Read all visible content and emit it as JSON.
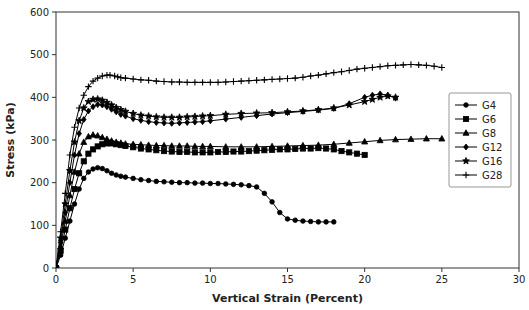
{
  "chart_data": {
    "type": "line",
    "xlabel": "Vertical Strain (Percent)",
    "ylabel": "Stress (kPa)",
    "xlim": [
      0,
      30
    ],
    "ylim": [
      0,
      600
    ],
    "xticks": [
      0,
      5,
      10,
      15,
      20,
      25,
      30
    ],
    "yticks": [
      0,
      100,
      200,
      300,
      400,
      500,
      600
    ],
    "grid": false,
    "legend": "right",
    "series": [
      {
        "name": "G4",
        "color": "black",
        "marker": "circle",
        "line_style": "solid",
        "x": [
          0,
          0.3,
          0.6,
          0.9,
          1.2,
          1.5,
          1.8,
          2.1,
          2.4,
          2.7,
          3.0,
          3.3,
          3.6,
          3.9,
          4.2,
          4.5,
          5.0,
          5.5,
          6.0,
          6.5,
          7.0,
          7.5,
          8.0,
          8.5,
          9.0,
          9.5,
          10.0,
          10.5,
          11.0,
          11.5,
          12.0,
          12.5,
          13.0,
          13.5,
          14.0,
          14.5,
          15.0,
          15.5,
          16.0,
          16.5,
          17.0,
          17.5,
          18.0
        ],
        "values": [
          0,
          30,
          70,
          110,
          150,
          185,
          210,
          225,
          232,
          235,
          233,
          228,
          222,
          218,
          215,
          213,
          210,
          207,
          205,
          203,
          202,
          201,
          200,
          200,
          199,
          199,
          198,
          198,
          197,
          196,
          195,
          193,
          190,
          175,
          155,
          130,
          115,
          112,
          110,
          109,
          108,
          108,
          108
        ]
      },
      {
        "name": "G6",
        "color": "black",
        "marker": "square",
        "line_style": "solid",
        "x": [
          0,
          0.3,
          0.6,
          0.9,
          1.2,
          1.5,
          1.8,
          2.1,
          2.4,
          2.7,
          3.0,
          3.3,
          3.6,
          3.9,
          4.2,
          4.5,
          5.0,
          5.5,
          6.0,
          6.5,
          7.0,
          7.5,
          8.0,
          8.5,
          9.0,
          9.5,
          10.0,
          10.5,
          11.0,
          11.5,
          12.0,
          12.5,
          13.0,
          13.5,
          14.0,
          14.5,
          15.0,
          15.5,
          16.0,
          16.5,
          17.0,
          17.5,
          18.0,
          18.5,
          19.0,
          19.5,
          20.0
        ],
        "values": [
          0,
          40,
          90,
          140,
          185,
          222,
          250,
          268,
          278,
          285,
          290,
          292,
          292,
          290,
          288,
          286,
          283,
          280,
          278,
          276,
          274,
          273,
          272,
          272,
          271,
          271,
          271,
          272,
          272,
          273,
          273,
          274,
          275,
          276,
          277,
          278,
          278,
          279,
          280,
          280,
          281,
          280,
          278,
          274,
          271,
          268,
          265
        ]
      },
      {
        "name": "G8",
        "color": "black",
        "marker": "triangle",
        "line_style": "solid",
        "x": [
          0,
          0.3,
          0.6,
          0.9,
          1.2,
          1.5,
          1.8,
          2.1,
          2.4,
          2.7,
          3.0,
          3.3,
          3.6,
          3.9,
          4.2,
          4.5,
          5.0,
          5.5,
          6.0,
          6.5,
          7.0,
          7.5,
          8.0,
          8.5,
          9.0,
          9.5,
          10.0,
          11.0,
          12.0,
          13.0,
          14.0,
          15.0,
          16.0,
          17.0,
          18.0,
          19.0,
          20.0,
          21.0,
          22.0,
          23.0,
          24.0,
          25.0
        ],
        "values": [
          0,
          50,
          110,
          170,
          225,
          268,
          295,
          308,
          312,
          310,
          306,
          302,
          298,
          295,
          293,
          291,
          290,
          289,
          288,
          287,
          287,
          286,
          286,
          286,
          285,
          285,
          285,
          284,
          284,
          284,
          285,
          286,
          287,
          288,
          290,
          293,
          296,
          299,
          301,
          302,
          303,
          303
        ]
      },
      {
        "name": "G12",
        "color": "black",
        "marker": "diamond",
        "line_style": "solid",
        "x": [
          0,
          0.3,
          0.6,
          0.9,
          1.2,
          1.5,
          1.8,
          2.1,
          2.4,
          2.7,
          3.0,
          3.3,
          3.6,
          3.9,
          4.2,
          4.5,
          5.0,
          5.5,
          6.0,
          6.5,
          7.0,
          7.5,
          8.0,
          8.5,
          9.0,
          9.5,
          10.0,
          11.0,
          12.0,
          13.0,
          14.0,
          15.0,
          16.0,
          17.0,
          18.0,
          19.0,
          20.0,
          20.5,
          21.0,
          21.5,
          22.0
        ],
        "values": [
          0,
          60,
          130,
          200,
          265,
          315,
          348,
          368,
          378,
          383,
          382,
          378,
          372,
          366,
          360,
          356,
          350,
          346,
          343,
          341,
          340,
          339,
          340,
          341,
          342,
          343,
          345,
          349,
          353,
          357,
          361,
          364,
          367,
          370,
          374,
          385,
          400,
          405,
          408,
          405,
          398
        ]
      },
      {
        "name": "G16",
        "color": "black",
        "marker": "star",
        "line_style": "solid",
        "x": [
          0,
          0.3,
          0.6,
          0.9,
          1.2,
          1.5,
          1.8,
          2.1,
          2.4,
          2.7,
          3.0,
          3.3,
          3.6,
          3.9,
          4.2,
          4.5,
          5.0,
          5.5,
          6.0,
          6.5,
          7.0,
          7.5,
          8.0,
          8.5,
          9.0,
          9.5,
          10.0,
          11.0,
          12.0,
          13.0,
          14.0,
          15.0,
          16.0,
          17.0,
          18.0,
          19.0,
          20.0,
          20.5,
          21.0,
          21.5,
          22.0
        ],
        "values": [
          0,
          70,
          150,
          228,
          295,
          345,
          375,
          390,
          395,
          396,
          393,
          388,
          382,
          376,
          371,
          367,
          362,
          358,
          356,
          354,
          353,
          353,
          353,
          354,
          355,
          356,
          357,
          360,
          362,
          363,
          364,
          366,
          368,
          371,
          375,
          382,
          390,
          395,
          400,
          403,
          400
        ]
      },
      {
        "name": "G28",
        "color": "black",
        "marker": "plus",
        "line_style": "solid",
        "x": [
          0,
          0.3,
          0.6,
          0.9,
          1.2,
          1.5,
          1.8,
          2.1,
          2.4,
          2.7,
          3.0,
          3.3,
          3.5,
          3.8,
          4.0,
          4.2,
          4.5,
          5.0,
          5.5,
          6.0,
          6.5,
          7.0,
          7.5,
          8.0,
          8.5,
          9.0,
          9.5,
          10.0,
          10.5,
          11.0,
          11.5,
          12.0,
          12.5,
          13.0,
          13.5,
          14.0,
          14.5,
          15.0,
          15.5,
          16.0,
          16.5,
          17.0,
          17.5,
          18.0,
          18.5,
          19.0,
          19.5,
          20.0,
          20.5,
          21.0,
          21.5,
          22.0,
          22.5,
          23.0,
          23.5,
          24.0,
          24.5,
          25.0
        ],
        "values": [
          0,
          85,
          175,
          265,
          330,
          375,
          405,
          425,
          438,
          445,
          450,
          452,
          452,
          450,
          448,
          446,
          445,
          443,
          441,
          440,
          438,
          437,
          436,
          436,
          435,
          435,
          435,
          435,
          435,
          436,
          437,
          438,
          439,
          440,
          441,
          442,
          443,
          444,
          445,
          447,
          450,
          452,
          455,
          458,
          460,
          463,
          466,
          468,
          470,
          472,
          474,
          475,
          476,
          477,
          476,
          475,
          473,
          470
        ]
      }
    ]
  }
}
